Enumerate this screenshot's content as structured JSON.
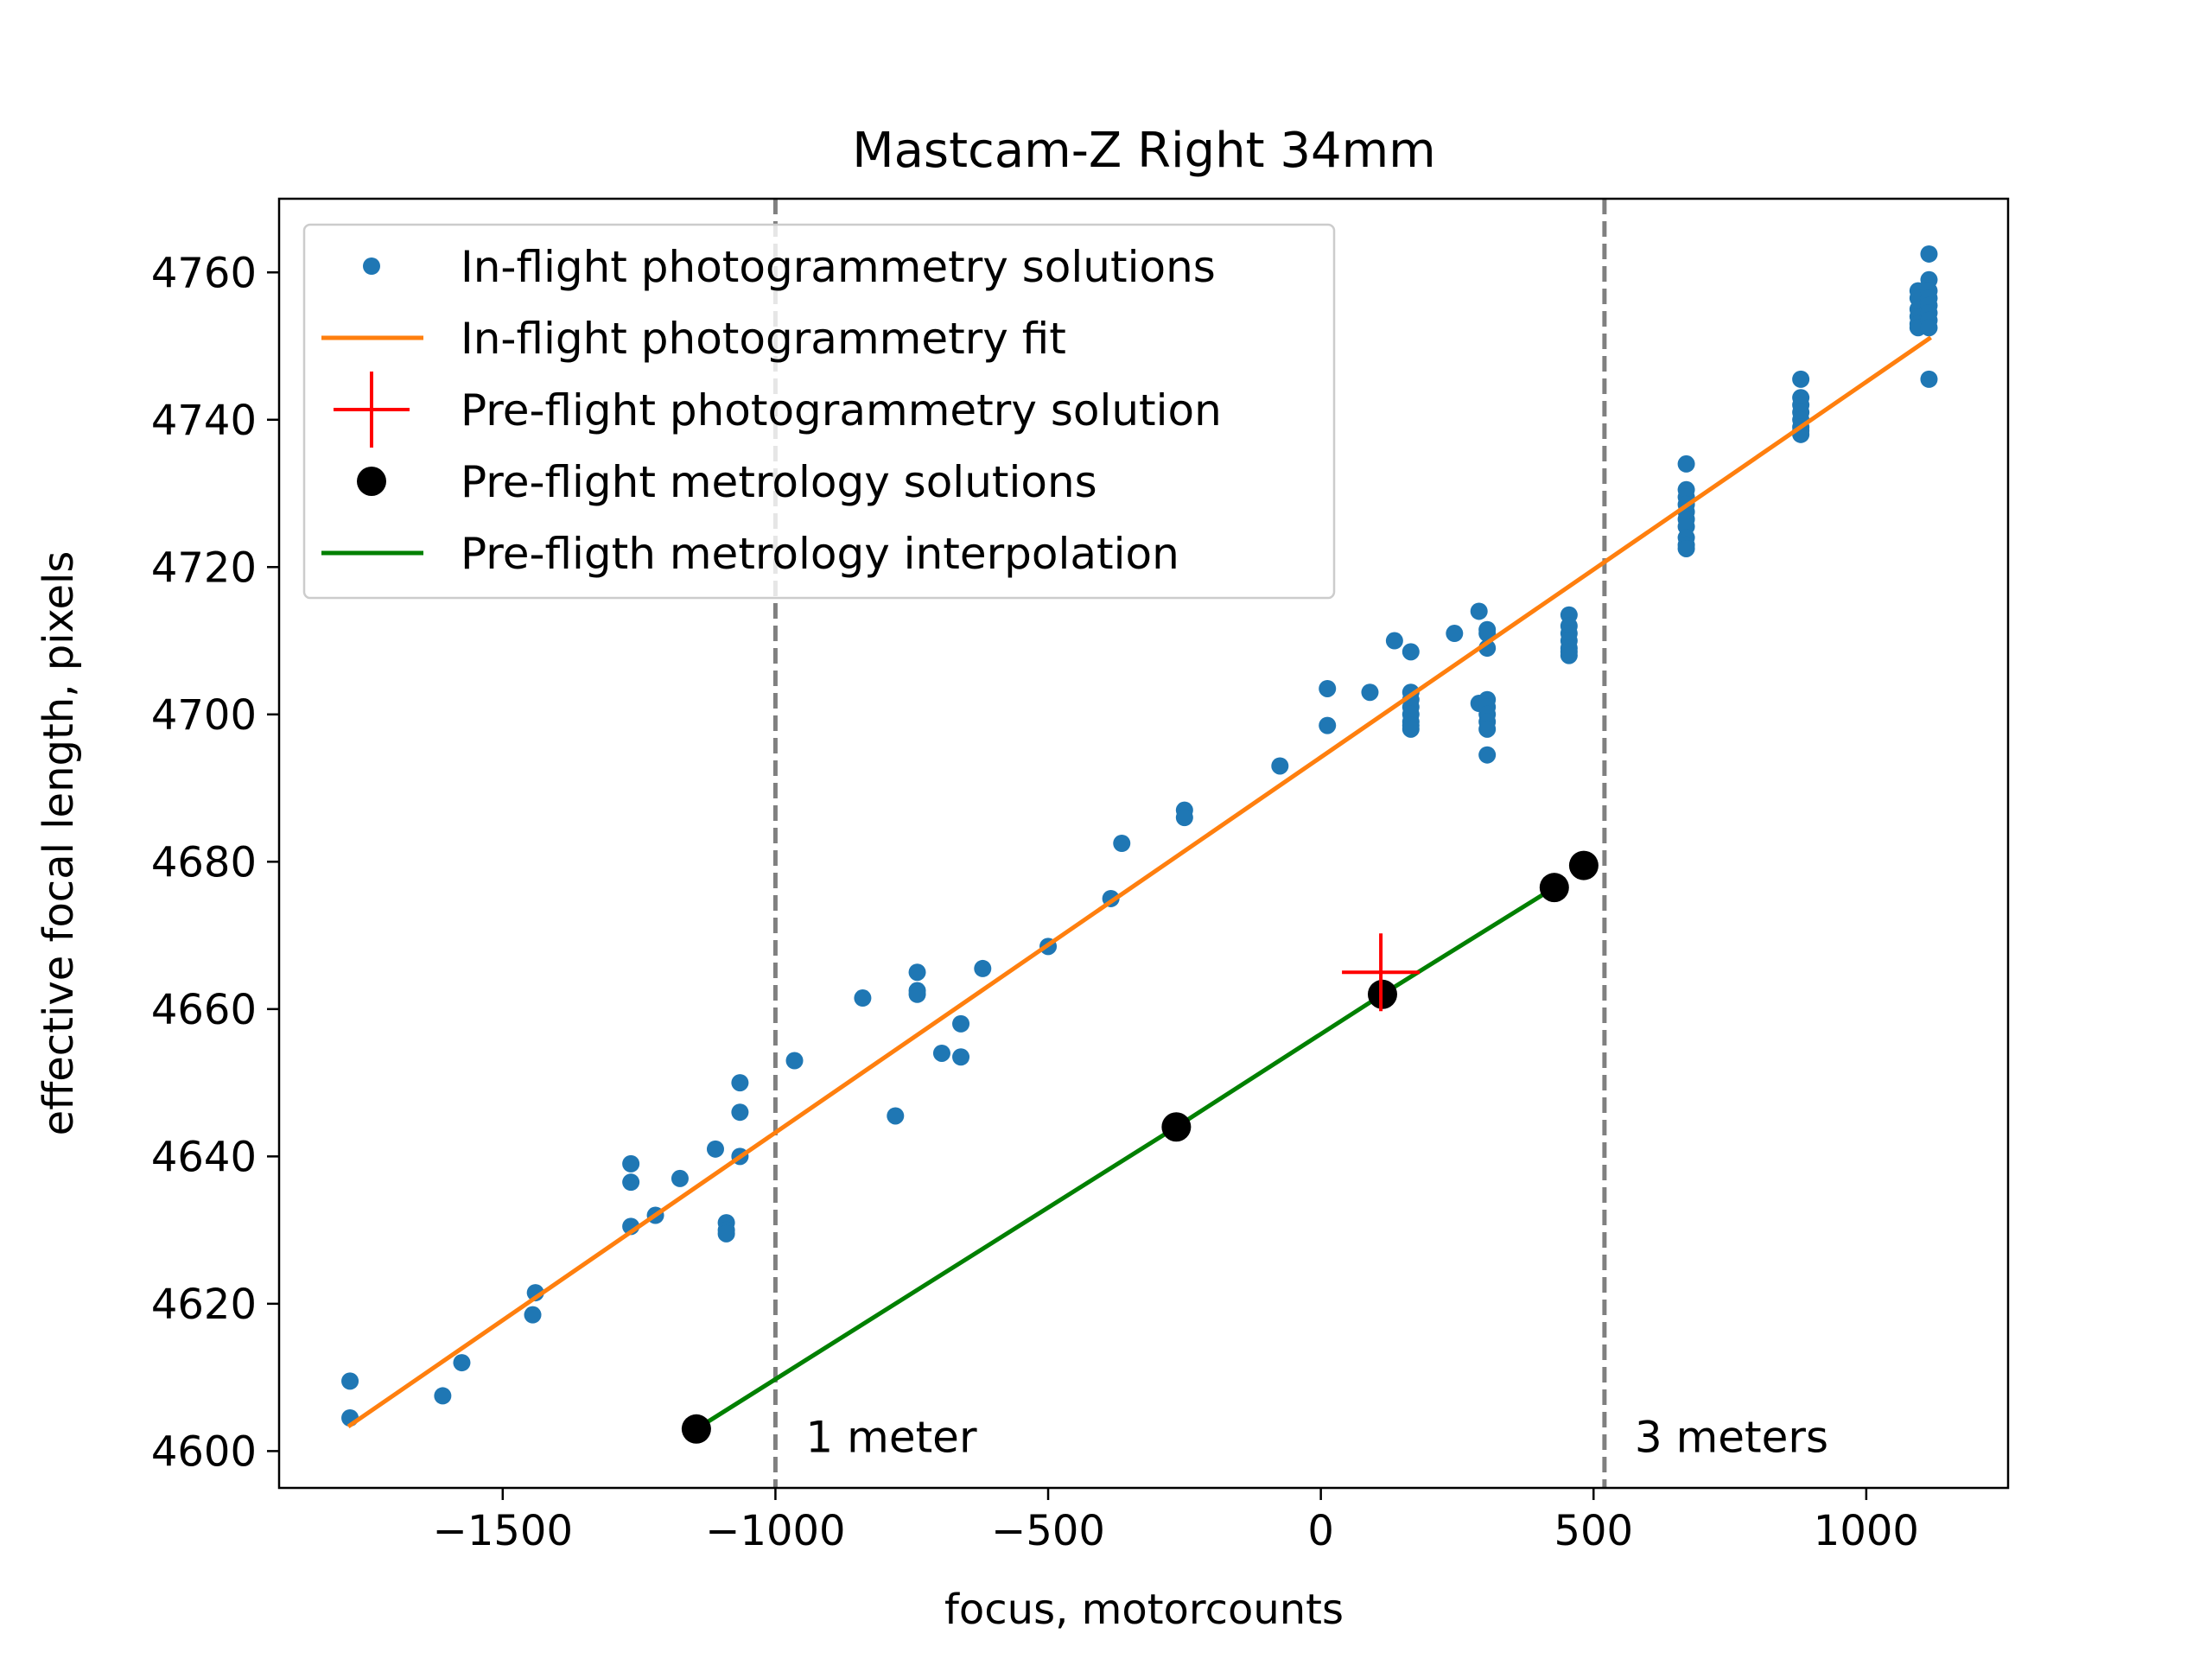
{
  "chart_data": {
    "type": "scatter",
    "title": "Mastcam-Z Right 34mm",
    "xlabel": "focus, motorcounts",
    "ylabel": "effective focal length, pixels",
    "xlim": [
      -1910,
      1260
    ],
    "ylim": [
      4595,
      4770
    ],
    "xticks": [
      -1500,
      -1000,
      -500,
      0,
      500,
      1000
    ],
    "xtick_labels": [
      "−1500",
      "−1000",
      "−500",
      "0",
      "500",
      "1000"
    ],
    "yticks": [
      4600,
      4620,
      4640,
      4660,
      4680,
      4700,
      4720,
      4740,
      4760
    ],
    "ytick_labels": [
      "4600",
      "4620",
      "4640",
      "4660",
      "4680",
      "4700",
      "4720",
      "4740",
      "4760"
    ],
    "grid": false,
    "legend_position": "upper-left",
    "series": [
      {
        "name": "In-flight photogrammetry solutions",
        "kind": "points",
        "color": "#1f77b4",
        "points": [
          [
            -1780,
            4609.5
          ],
          [
            -1780,
            4604.5
          ],
          [
            -1610,
            4607.5
          ],
          [
            -1575,
            4612
          ],
          [
            -1440,
            4621.5
          ],
          [
            -1445,
            4618.5
          ],
          [
            -1265,
            4639
          ],
          [
            -1265,
            4636.5
          ],
          [
            -1265,
            4630.5
          ],
          [
            -1220,
            4632
          ],
          [
            -1175,
            4637
          ],
          [
            -1110,
            4641
          ],
          [
            -1090,
            4631
          ],
          [
            -1090,
            4630
          ],
          [
            -1090,
            4629.5
          ],
          [
            -1065,
            4650
          ],
          [
            -1065,
            4646
          ],
          [
            -1065,
            4640
          ],
          [
            -965,
            4653
          ],
          [
            -840,
            4661.5
          ],
          [
            -780,
            4645.5
          ],
          [
            -740,
            4665
          ],
          [
            -740,
            4662.5
          ],
          [
            -740,
            4662
          ],
          [
            -695,
            4654
          ],
          [
            -660,
            4658
          ],
          [
            -660,
            4653.5
          ],
          [
            -620,
            4665.5
          ],
          [
            -500,
            4668.5
          ],
          [
            -385,
            4675
          ],
          [
            -365,
            4682.5
          ],
          [
            -250,
            4687
          ],
          [
            -250,
            4686
          ],
          [
            -75,
            4693
          ],
          [
            12,
            4703.5
          ],
          [
            12,
            4698.5
          ],
          [
            90,
            4703
          ],
          [
            135,
            4710
          ],
          [
            165,
            4708.5
          ],
          [
            165,
            4703
          ],
          [
            165,
            4702
          ],
          [
            165,
            4701
          ],
          [
            165,
            4700
          ],
          [
            165,
            4699
          ],
          [
            165,
            4698.5
          ],
          [
            165,
            4698
          ],
          [
            245,
            4711
          ],
          [
            290,
            4714
          ],
          [
            290,
            4701.5
          ],
          [
            305,
            4711.5
          ],
          [
            305,
            4711
          ],
          [
            305,
            4709
          ],
          [
            305,
            4702
          ],
          [
            305,
            4701
          ],
          [
            305,
            4700
          ],
          [
            305,
            4699
          ],
          [
            305,
            4698
          ],
          [
            305,
            4694.5
          ],
          [
            455,
            4713.5
          ],
          [
            455,
            4712
          ],
          [
            455,
            4711
          ],
          [
            455,
            4710
          ],
          [
            455,
            4709
          ],
          [
            455,
            4708.5
          ],
          [
            455,
            4708
          ],
          [
            670,
            4734
          ],
          [
            670,
            4730.5
          ],
          [
            670,
            4729.5
          ],
          [
            670,
            4728.5
          ],
          [
            670,
            4727.5
          ],
          [
            670,
            4726.5
          ],
          [
            670,
            4725.5
          ],
          [
            670,
            4724
          ],
          [
            670,
            4723
          ],
          [
            670,
            4722.5
          ],
          [
            880,
            4745.5
          ],
          [
            880,
            4743
          ],
          [
            880,
            4742
          ],
          [
            880,
            4741
          ],
          [
            880,
            4740
          ],
          [
            880,
            4739
          ],
          [
            880,
            4738.5
          ],
          [
            880,
            4738
          ],
          [
            1095,
            4757.5
          ],
          [
            1095,
            4756.5
          ],
          [
            1095,
            4755
          ],
          [
            1095,
            4754
          ],
          [
            1095,
            4753
          ],
          [
            1095,
            4752.5
          ],
          [
            1115,
            4762.5
          ],
          [
            1115,
            4759
          ],
          [
            1115,
            4757.5
          ],
          [
            1115,
            4756.5
          ],
          [
            1115,
            4755.5
          ],
          [
            1115,
            4754.5
          ],
          [
            1115,
            4753.5
          ],
          [
            1115,
            4752.5
          ],
          [
            1115,
            4745.5
          ]
        ]
      },
      {
        "name": "In-flight photogrammetry fit",
        "kind": "line",
        "color": "#ff7f0e",
        "points": [
          [
            -1780,
            4603.5
          ],
          [
            1115,
            4751
          ]
        ]
      },
      {
        "name": "Pre-flight photogrammetry solution",
        "kind": "plus",
        "color": "#ff0000",
        "points": [
          [
            110,
            4665
          ]
        ]
      },
      {
        "name": "Pre-flight metrology solutions",
        "kind": "big-points",
        "color": "#000000",
        "points": [
          [
            -1145,
            4603
          ],
          [
            -265,
            4644
          ],
          [
            113,
            4662
          ],
          [
            428,
            4676.5
          ],
          [
            482,
            4679.5
          ]
        ]
      },
      {
        "name": "Pre-fligth metrology interpolation",
        "kind": "line",
        "color": "#008000",
        "points": [
          [
            -1145,
            4603
          ],
          [
            -265,
            4644
          ],
          [
            113,
            4662
          ],
          [
            428,
            4676.5
          ]
        ]
      }
    ],
    "reference_lines": [
      {
        "x": -1000,
        "label": "1 meter",
        "label_y": 4602,
        "color": "#808080"
      },
      {
        "x": 520,
        "label": "3 meters",
        "label_y": 4602,
        "color": "#808080"
      }
    ]
  }
}
